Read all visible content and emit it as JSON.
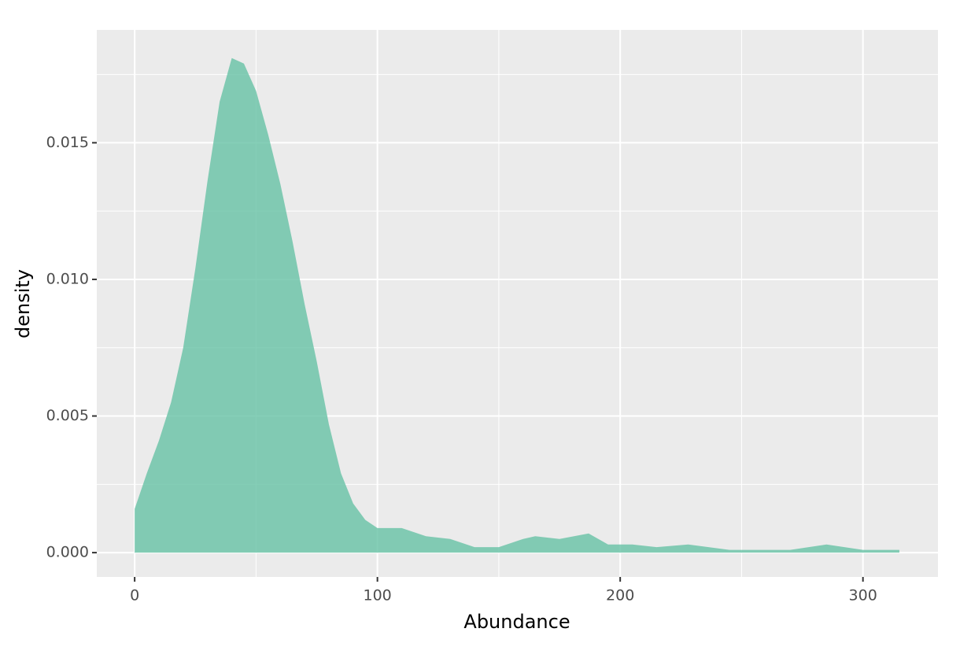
{
  "chart_data": {
    "type": "area",
    "x_label": "Abundance",
    "y_label": "density",
    "x": [
      0,
      5,
      10,
      15,
      20,
      25,
      30,
      35,
      40,
      45,
      50,
      55,
      60,
      65,
      70,
      75,
      80,
      85,
      90,
      95,
      100,
      110,
      120,
      130,
      140,
      150,
      160,
      165,
      175,
      187,
      195,
      205,
      215,
      228,
      245,
      258,
      270,
      285,
      300,
      310,
      315
    ],
    "values": [
      0.0016,
      0.0029,
      0.0041,
      0.0055,
      0.0075,
      0.0104,
      0.0136,
      0.0165,
      0.0181,
      0.0179,
      0.0169,
      0.0153,
      0.0135,
      0.0114,
      0.0091,
      0.007,
      0.0047,
      0.0029,
      0.0018,
      0.0012,
      0.0009,
      0.0009,
      0.0006,
      0.0005,
      0.0002,
      0.0002,
      0.0005,
      0.0006,
      0.0005,
      0.0007,
      0.0003,
      0.0003,
      0.0002,
      0.0003,
      0.0001,
      0.0001,
      0.0001,
      0.0003,
      0.0001,
      0.0001,
      0.0001
    ],
    "color": "#66c2a5",
    "opacity": 0.8,
    "xlim": [
      -15.6,
      330.9
    ],
    "ylim": [
      -0.00089,
      0.01913
    ],
    "xticks": [
      0,
      100,
      200,
      300
    ],
    "yticks": [
      {
        "value": 0,
        "label": "0.000"
      },
      {
        "value": 0.005,
        "label": "0.005"
      },
      {
        "value": 0.01,
        "label": "0.010"
      },
      {
        "value": 0.015,
        "label": "0.015"
      }
    ],
    "x_minor_grid": [
      50,
      150,
      250
    ],
    "y_minor_grid": [
      0.0025,
      0.0075,
      0.0125,
      0.0175
    ],
    "grid": true
  }
}
